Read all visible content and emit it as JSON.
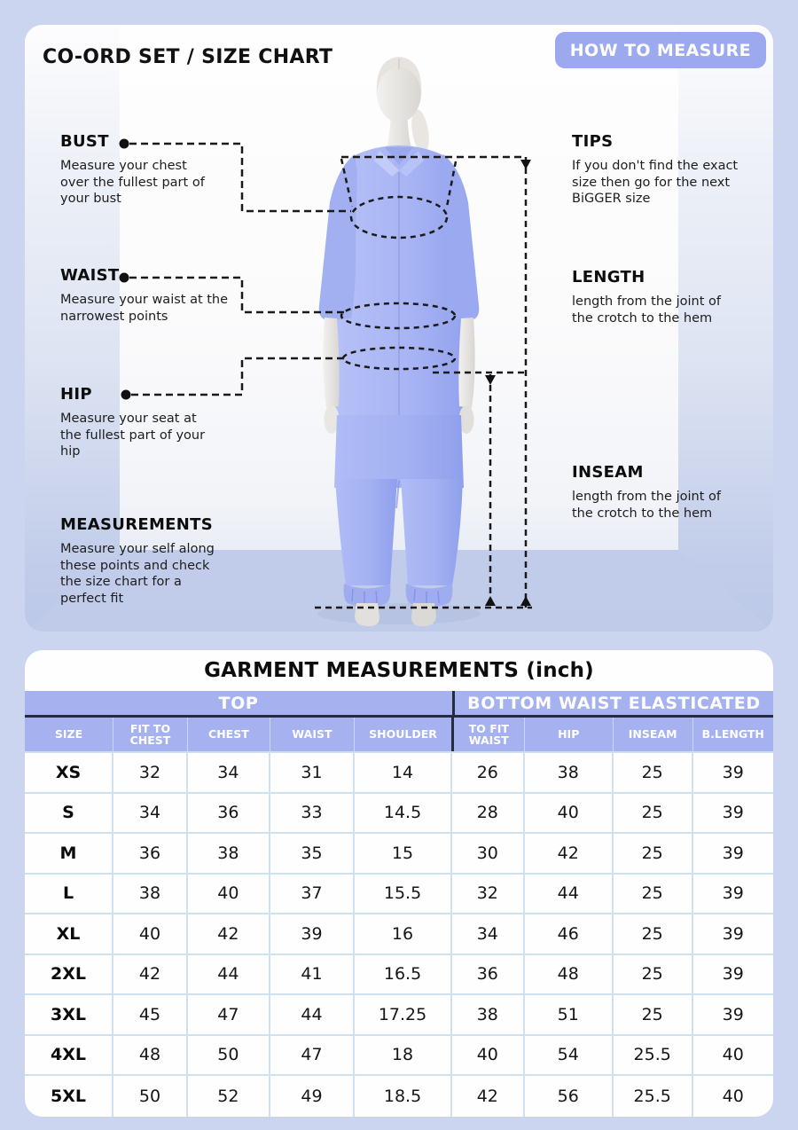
{
  "header": {
    "title": "CO-ORD SET / SIZE CHART",
    "measure_button": "HOW TO MEASURE"
  },
  "annotations": {
    "bust": {
      "label": "BUST",
      "desc": "Measure your chest over the fullest part of your bust"
    },
    "waist": {
      "label": "WAIST",
      "desc": "Measure your waist at the narrowest points"
    },
    "hip": {
      "label": "HIP",
      "desc": "Measure your seat at the fullest part of your hip"
    },
    "measurements": {
      "label": "MEASUREMENTS",
      "desc": "Measure your self along these points and check the size chart for a perfect fit"
    },
    "tips": {
      "label": "TIPS",
      "desc": "If you don't find the exact size then go for the next BiGGER size"
    },
    "length": {
      "label": "LENGTH",
      "desc": "length from the joint of the crotch to the hem"
    },
    "inseam": {
      "label": "INSEAM",
      "desc": "length from the joint of the crotch to the hem"
    }
  },
  "table": {
    "title": "GARMENT MEASUREMENTS (inch)",
    "groups": [
      {
        "label": "TOP",
        "span": 5
      },
      {
        "label": "BOTTOM WAIST ELASTICATED",
        "span": 4
      }
    ],
    "columns": [
      "SIZE",
      "FIT TO CHEST",
      "CHEST",
      "WAIST",
      "SHOULDER",
      "TO FIT WAIST",
      "HIP",
      "INSEAM",
      "B.LENGTH"
    ],
    "rows": [
      {
        "size": "XS",
        "values": [
          32,
          34,
          31,
          14,
          26,
          38,
          25,
          39
        ]
      },
      {
        "size": "S",
        "values": [
          34,
          36,
          33,
          14.5,
          28,
          40,
          25,
          39
        ]
      },
      {
        "size": "M",
        "values": [
          36,
          38,
          35,
          15,
          30,
          42,
          25,
          39
        ]
      },
      {
        "size": "L",
        "values": [
          38,
          40,
          37,
          15.5,
          32,
          44,
          25,
          39
        ]
      },
      {
        "size": "XL",
        "values": [
          40,
          42,
          39,
          16,
          34,
          46,
          25,
          39
        ]
      },
      {
        "size": "2XL",
        "values": [
          42,
          44,
          41,
          16.5,
          36,
          48,
          25,
          39
        ]
      },
      {
        "size": "3XL",
        "values": [
          45,
          47,
          44,
          17.25,
          38,
          51,
          25,
          39
        ]
      },
      {
        "size": "4XL",
        "values": [
          48,
          50,
          47,
          18,
          40,
          54,
          25.5,
          40
        ]
      },
      {
        "size": "5XL",
        "values": [
          50,
          52,
          49,
          18.5,
          42,
          56,
          25.5,
          40
        ]
      }
    ]
  },
  "colors": {
    "page_bg": "#cbd5f0",
    "accent_button": "#9ca9ee",
    "table_header": "#a6b1f0",
    "grid_line": "#cfe0ee",
    "dark_divider": "#262b3d",
    "garment": "#a9b5f4"
  }
}
